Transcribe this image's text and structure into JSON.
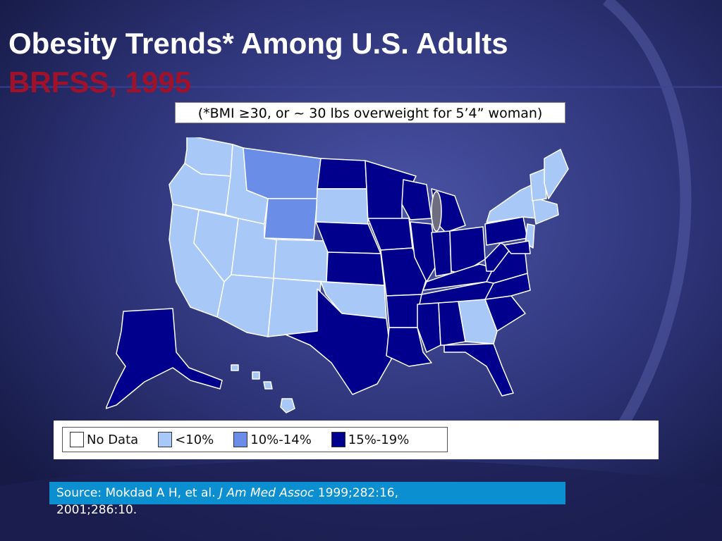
{
  "slide": {
    "title": "Obesity Trends* Among U.S. Adults",
    "subtitle": "BRFSS, 1995",
    "note": "(*BMI ≥30, or ~ 30 lbs overweight for 5’4” woman)"
  },
  "legend": [
    {
      "label": "No Data",
      "color": "#ffffff"
    },
    {
      "label": "<10%",
      "color": "#a8c8f8"
    },
    {
      "label": "10%-14%",
      "color": "#6a8ee8"
    },
    {
      "label": "15%-19%",
      "color": "#00008c"
    }
  ],
  "source": {
    "prefix": "Source: Mokdad A H, et al.",
    "journal": "J Am Med Assoc",
    "citation": "1999;282:16,",
    "continuation": "2001;286:10."
  },
  "colors": {
    "no_data": "#ffffff",
    "lt10": "#a8c8f8",
    "p10_14": "#6a8ee8",
    "p15_19": "#00008c",
    "background": "#262a63",
    "source_box": "#0c8fd0",
    "subtitle": "#a1122a"
  }
}
